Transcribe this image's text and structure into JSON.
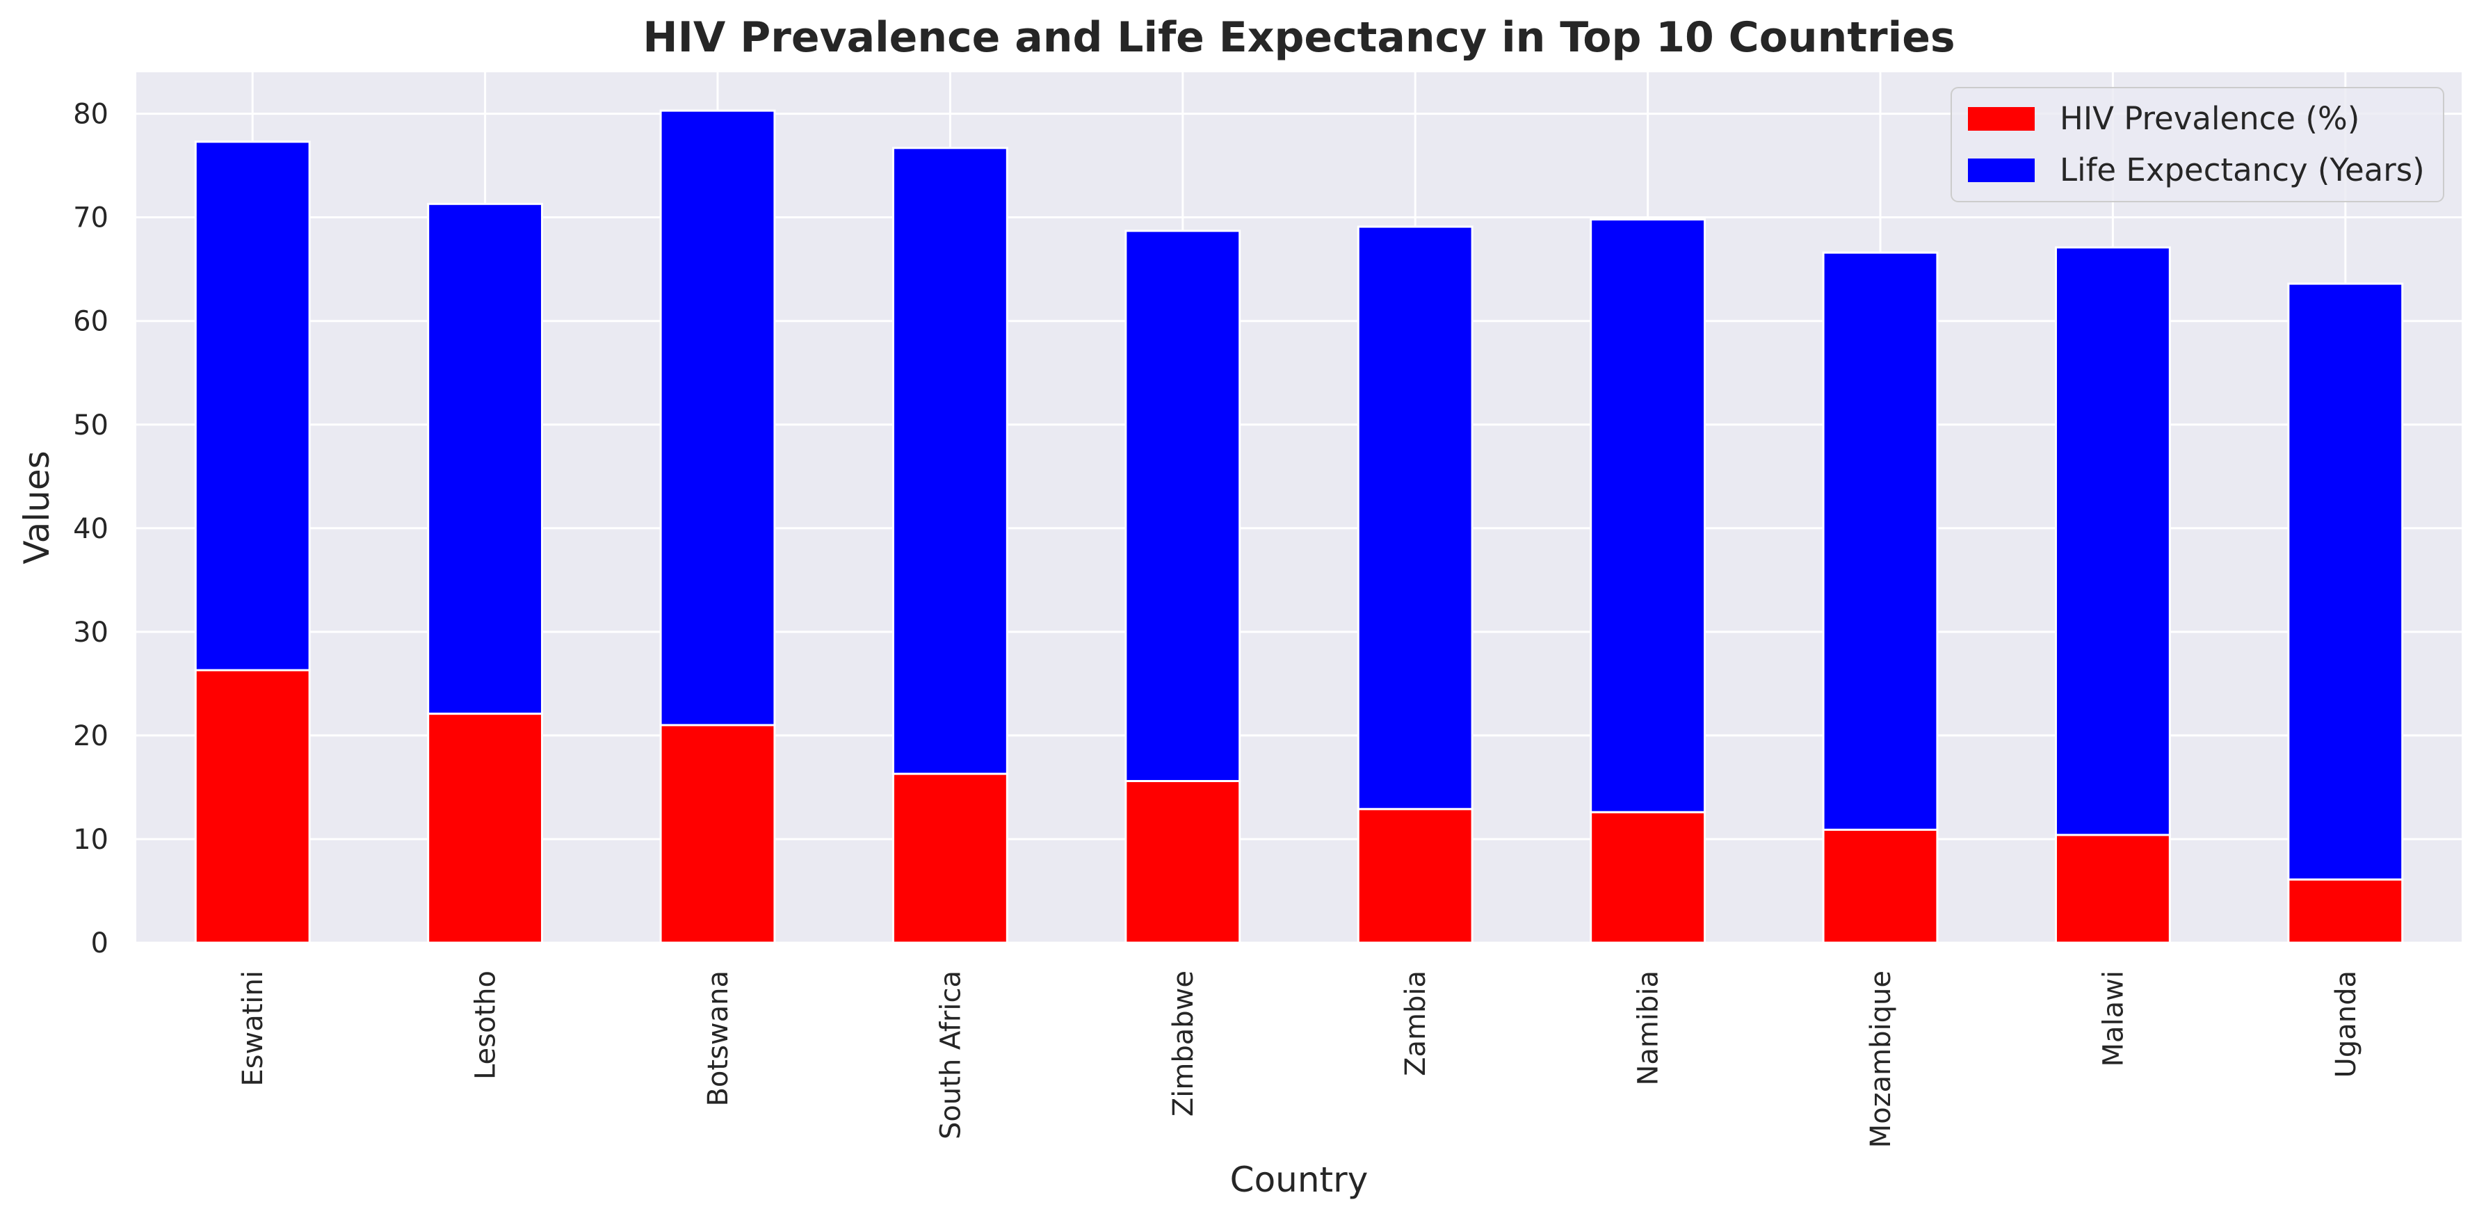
{
  "chart_data": {
    "type": "bar",
    "stacked": true,
    "title": "HIV Prevalence and Life Expectancy in Top 10 Countries",
    "xlabel": "Country",
    "ylabel": "Values",
    "ylim": [
      0,
      84
    ],
    "yticks": [
      0,
      10,
      20,
      30,
      40,
      50,
      60,
      70,
      80
    ],
    "grid": true,
    "legend_position": "top-right",
    "categories": [
      "Eswatini",
      "Lesotho",
      "Botswana",
      "South Africa",
      "Zimbabwe",
      "Zambia",
      "Namibia",
      "Mozambique",
      "Malawi",
      "Uganda"
    ],
    "series": [
      {
        "name": "HIV Prevalence (%)",
        "color": "#ff0000",
        "values": [
          26.3,
          22.1,
          21.0,
          16.3,
          15.6,
          12.9,
          12.6,
          10.9,
          10.4,
          6.1
        ]
      },
      {
        "name": "Life Expectancy (Years)",
        "color": "#0000ff",
        "values": [
          51.0,
          49.2,
          59.3,
          60.4,
          53.1,
          56.2,
          57.2,
          55.7,
          56.7,
          57.5
        ]
      }
    ],
    "background": "#eaeaf2",
    "grid_color": "#ffffff"
  }
}
